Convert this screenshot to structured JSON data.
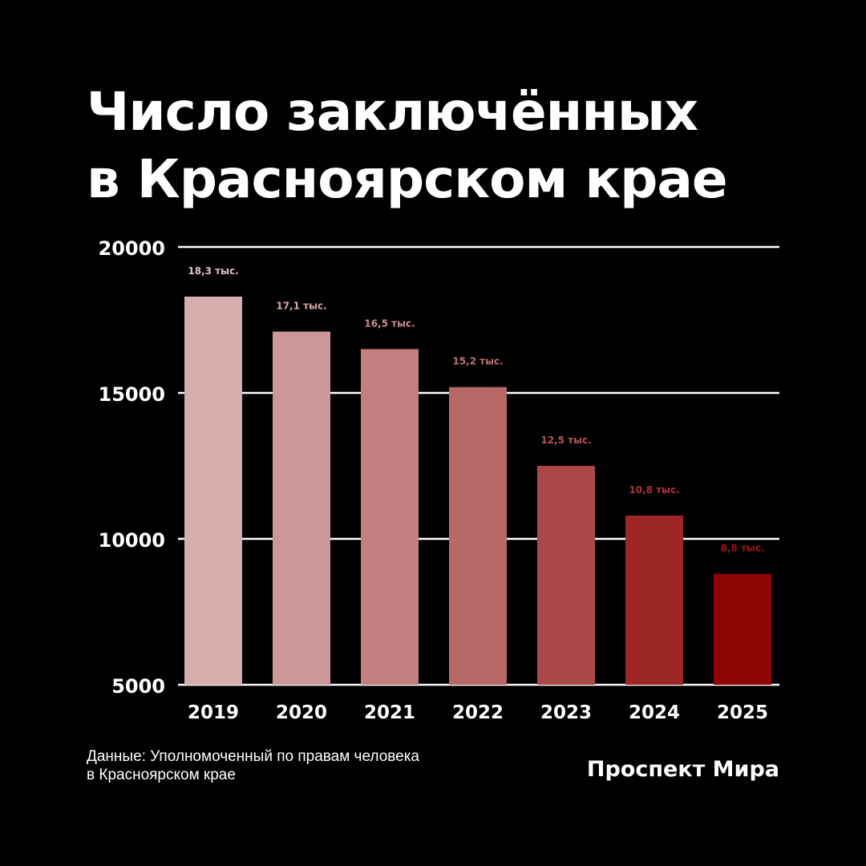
{
  "title_lines": [
    "Число заключённых",
    "в Красноярском крае"
  ],
  "chart_data": {
    "type": "bar",
    "title": "Число заключённых в Красноярском крае",
    "xlabel": "",
    "ylabel": "",
    "categories": [
      "2019",
      "2020",
      "2021",
      "2022",
      "2023",
      "2024",
      "2025"
    ],
    "values": [
      18300,
      17100,
      16500,
      15200,
      12500,
      10800,
      8800
    ],
    "data_labels": [
      "18,3 тыс.",
      "17,1 тыс.",
      "16,5 тыс.",
      "15,2 тыс.",
      "12,5 тыс.",
      "10,8 тыс.",
      "8,8 тыс."
    ],
    "ylim": [
      5000,
      20000
    ],
    "yticks": [
      5000,
      10000,
      15000,
      20000
    ],
    "ytick_labels": [
      "5000",
      "10000",
      "15000",
      "20000"
    ],
    "grid": true,
    "colors": {
      "bar_gradient": [
        "#d6aeae",
        "#b96868",
        "#8f0505"
      ],
      "label_gradient": [
        "#e2c1c1",
        "#c27272",
        "#a01414"
      ],
      "grid": "#ffffff",
      "background": "#000000"
    }
  },
  "footer": {
    "source_lines": [
      "Данные: Уполномоченный по правам человека",
      "в Красноярском крае"
    ],
    "brand": "Проспект Мира"
  }
}
